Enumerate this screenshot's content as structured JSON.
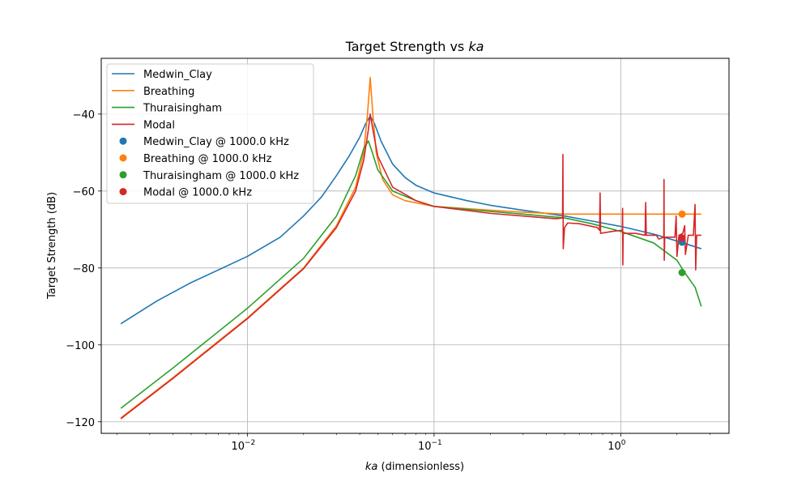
{
  "chart_data": {
    "type": "line",
    "title": "Target Strength vs ka",
    "title_prefix": "Target Strength vs ",
    "title_italic": "ka",
    "xlabel_italic": "ka",
    "xlabel_rest": " (dimensionless)",
    "ylabel": "Target Strength (dB)",
    "xscale": "log",
    "xlim": [
      0.00165,
      3.8
    ],
    "ylim": [
      -123,
      -25.5
    ],
    "grid": true,
    "legend_position": "top-left",
    "x_ticks": [
      {
        "value": 0.01,
        "base": "10",
        "exp": "−2"
      },
      {
        "value": 0.1,
        "base": "10",
        "exp": "−1"
      },
      {
        "value": 1,
        "base": "10",
        "exp": "0"
      }
    ],
    "y_ticks": [
      {
        "value": -40,
        "label": "−40"
      },
      {
        "value": -60,
        "label": "−60"
      },
      {
        "value": -80,
        "label": "−80"
      },
      {
        "value": -100,
        "label": "−100"
      },
      {
        "value": -120,
        "label": "−120"
      }
    ],
    "series": [
      {
        "name": "Medwin_Clay",
        "color": "#1f77b4",
        "points": [
          [
            0.0021,
            -94.5
          ],
          [
            0.0033,
            -88.5
          ],
          [
            0.005,
            -83.8
          ],
          [
            0.01,
            -77
          ],
          [
            0.015,
            -72
          ],
          [
            0.02,
            -66.5
          ],
          [
            0.025,
            -61.5
          ],
          [
            0.03,
            -56
          ],
          [
            0.035,
            -51
          ],
          [
            0.04,
            -46
          ],
          [
            0.043,
            -42.5
          ],
          [
            0.0455,
            -40.5
          ],
          [
            0.048,
            -42.5
          ],
          [
            0.052,
            -47
          ],
          [
            0.06,
            -53
          ],
          [
            0.07,
            -56.5
          ],
          [
            0.08,
            -58.5
          ],
          [
            0.1,
            -60.5
          ],
          [
            0.15,
            -62.5
          ],
          [
            0.2,
            -63.7
          ],
          [
            0.3,
            -65
          ],
          [
            0.5,
            -66.5
          ],
          [
            0.7,
            -67.8
          ],
          [
            1,
            -69.2
          ],
          [
            1.5,
            -71.2
          ],
          [
            2,
            -73
          ],
          [
            2.7,
            -75
          ]
        ]
      },
      {
        "name": "Breathing",
        "color": "#ff7f0e",
        "points": [
          [
            0.0021,
            -119
          ],
          [
            0.004,
            -108.5
          ],
          [
            0.01,
            -93
          ],
          [
            0.02,
            -80
          ],
          [
            0.03,
            -69
          ],
          [
            0.038,
            -59
          ],
          [
            0.042,
            -50
          ],
          [
            0.044,
            -40
          ],
          [
            0.0455,
            -30.5
          ],
          [
            0.047,
            -40
          ],
          [
            0.049,
            -50
          ],
          [
            0.053,
            -57
          ],
          [
            0.06,
            -61
          ],
          [
            0.07,
            -62.5
          ],
          [
            0.1,
            -64
          ],
          [
            0.2,
            -65
          ],
          [
            0.3,
            -65.5
          ],
          [
            0.5,
            -66
          ],
          [
            1,
            -66
          ],
          [
            2.7,
            -66
          ]
        ]
      },
      {
        "name": "Thuraisingham",
        "color": "#2ca02c",
        "points": [
          [
            0.0021,
            -116.5
          ],
          [
            0.004,
            -106
          ],
          [
            0.01,
            -90.5
          ],
          [
            0.02,
            -77.5
          ],
          [
            0.03,
            -66.5
          ],
          [
            0.038,
            -56
          ],
          [
            0.042,
            -49
          ],
          [
            0.0445,
            -47
          ],
          [
            0.046,
            -49
          ],
          [
            0.05,
            -54.5
          ],
          [
            0.06,
            -60
          ],
          [
            0.08,
            -62.5
          ],
          [
            0.1,
            -64
          ],
          [
            0.2,
            -65.3
          ],
          [
            0.3,
            -66
          ],
          [
            0.5,
            -67
          ],
          [
            0.7,
            -68.5
          ],
          [
            1,
            -70.5
          ],
          [
            1.5,
            -73.5
          ],
          [
            2,
            -78
          ],
          [
            2.2,
            -81.2
          ],
          [
            2.5,
            -85
          ],
          [
            2.7,
            -90
          ]
        ]
      },
      {
        "name": "Modal",
        "color": "#d62728",
        "points": [
          [
            0.0021,
            -119.2
          ],
          [
            0.004,
            -108.7
          ],
          [
            0.01,
            -93.2
          ],
          [
            0.02,
            -80.2
          ],
          [
            0.03,
            -69.5
          ],
          [
            0.038,
            -60
          ],
          [
            0.042,
            -52
          ],
          [
            0.0445,
            -44
          ],
          [
            0.0455,
            -40
          ],
          [
            0.047,
            -44
          ],
          [
            0.05,
            -51
          ],
          [
            0.06,
            -59
          ],
          [
            0.08,
            -62.5
          ],
          [
            0.1,
            -64
          ],
          [
            0.2,
            -65.8
          ],
          [
            0.3,
            -66.5
          ],
          [
            0.45,
            -67.2
          ],
          [
            0.488,
            -67
          ],
          [
            0.49,
            -50.5
          ],
          [
            0.492,
            -75
          ],
          [
            0.5,
            -69.5
          ],
          [
            0.52,
            -68.3
          ],
          [
            0.6,
            -68.5
          ],
          [
            0.75,
            -69.5
          ],
          [
            0.77,
            -70.2
          ],
          [
            0.775,
            -60.5
          ],
          [
            0.78,
            -71
          ],
          [
            0.9,
            -70.5
          ],
          [
            1.02,
            -70.2
          ],
          [
            1.023,
            -64.5
          ],
          [
            1.026,
            -79.2
          ],
          [
            1.03,
            -71
          ],
          [
            1.2,
            -71
          ],
          [
            1.35,
            -71.5
          ],
          [
            1.36,
            -63
          ],
          [
            1.37,
            -71.5
          ],
          [
            1.55,
            -71.5
          ],
          [
            1.6,
            -72.5
          ],
          [
            1.7,
            -72
          ],
          [
            1.705,
            -57
          ],
          [
            1.71,
            -78
          ],
          [
            1.72,
            -72
          ],
          [
            1.95,
            -72
          ],
          [
            1.98,
            -66.5
          ],
          [
            2.0,
            -77
          ],
          [
            2.05,
            -71.5
          ],
          [
            2.15,
            -71
          ],
          [
            2.2,
            -69
          ],
          [
            2.22,
            -76.5
          ],
          [
            2.3,
            -71.5
          ],
          [
            2.45,
            -71.5
          ],
          [
            2.5,
            -63.5
          ],
          [
            2.52,
            -80.5
          ],
          [
            2.55,
            -71.5
          ],
          [
            2.7,
            -71.5
          ]
        ]
      }
    ],
    "markers": [
      {
        "name": "Medwin_Clay @ 1000.0 kHz",
        "color": "#1f77b4",
        "x": 2.13,
        "y": -73.3
      },
      {
        "name": "Breathing @ 1000.0 kHz",
        "color": "#ff7f0e",
        "x": 2.13,
        "y": -66
      },
      {
        "name": "Thuraisingham @ 1000.0 kHz",
        "color": "#2ca02c",
        "x": 2.13,
        "y": -81.2
      },
      {
        "name": "Modal @ 1000.0 kHz",
        "color": "#d62728",
        "x": 2.13,
        "y": -72.2
      }
    ]
  }
}
